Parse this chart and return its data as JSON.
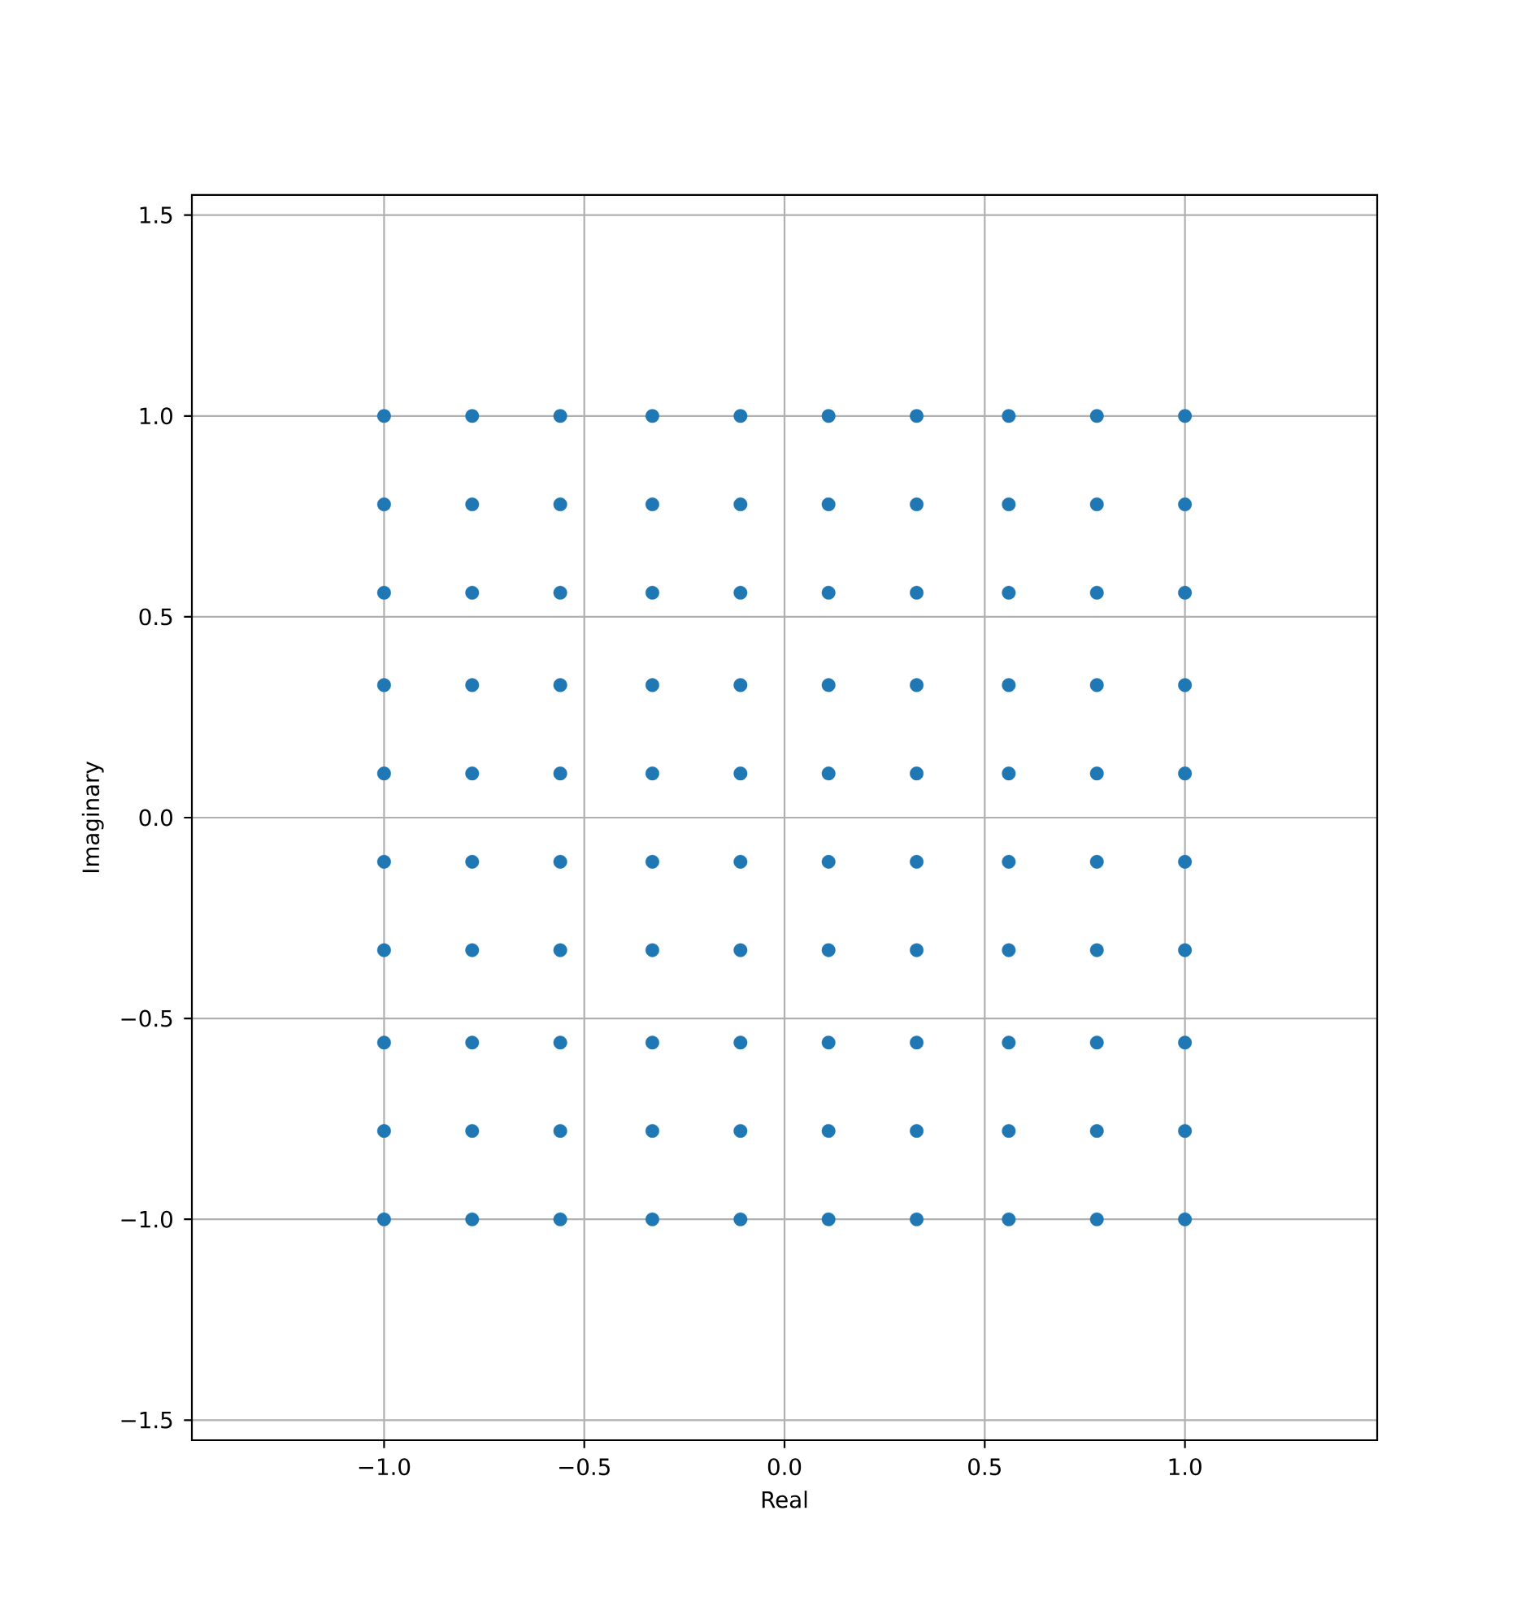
{
  "chart_data": {
    "type": "scatter",
    "xlabel": "Real",
    "ylabel": "Imaginary",
    "color": "#1f77b4",
    "marker": "circle",
    "grid": true,
    "x": [
      -1,
      -0.78,
      -0.56,
      -0.33,
      -0.11,
      0.11,
      0.33,
      0.56,
      0.78,
      1,
      -1,
      -0.78,
      -0.56,
      -0.33,
      -0.11,
      0.11,
      0.33,
      0.56,
      0.78,
      1,
      -1,
      -0.78,
      -0.56,
      -0.33,
      -0.11,
      0.11,
      0.33,
      0.56,
      0.78,
      1,
      -1,
      -0.78,
      -0.56,
      -0.33,
      -0.11,
      0.11,
      0.33,
      0.56,
      0.78,
      1,
      -1,
      -0.78,
      -0.56,
      -0.33,
      -0.11,
      0.11,
      0.33,
      0.56,
      0.78,
      1,
      -1,
      -0.78,
      -0.56,
      -0.33,
      -0.11,
      0.11,
      0.33,
      0.56,
      0.78,
      1,
      -1,
      -0.78,
      -0.56,
      -0.33,
      -0.11,
      0.11,
      0.33,
      0.56,
      0.78,
      1,
      -1,
      -0.78,
      -0.56,
      -0.33,
      -0.11,
      0.11,
      0.33,
      0.56,
      0.78,
      1,
      -1,
      -0.78,
      -0.56,
      -0.33,
      -0.11,
      0.11,
      0.33,
      0.56,
      0.78,
      1,
      -1,
      -0.78,
      -0.56,
      -0.33,
      -0.11,
      0.11,
      0.33,
      0.56,
      0.78,
      1
    ],
    "values": [
      1,
      1,
      1,
      1,
      1,
      1,
      1,
      1,
      1,
      1,
      0.78,
      0.78,
      0.78,
      0.78,
      0.78,
      0.78,
      0.78,
      0.78,
      0.78,
      0.78,
      0.56,
      0.56,
      0.56,
      0.56,
      0.56,
      0.56,
      0.56,
      0.56,
      0.56,
      0.56,
      0.33,
      0.33,
      0.33,
      0.33,
      0.33,
      0.33,
      0.33,
      0.33,
      0.33,
      0.33,
      0.11,
      0.11,
      0.11,
      0.11,
      0.11,
      0.11,
      0.11,
      0.11,
      0.11,
      0.11,
      -0.11,
      -0.11,
      -0.11,
      -0.11,
      -0.11,
      -0.11,
      -0.11,
      -0.11,
      -0.11,
      -0.11,
      -0.33,
      -0.33,
      -0.33,
      -0.33,
      -0.33,
      -0.33,
      -0.33,
      -0.33,
      -0.33,
      -0.33,
      -0.56,
      -0.56,
      -0.56,
      -0.56,
      -0.56,
      -0.56,
      -0.56,
      -0.56,
      -0.56,
      -0.56,
      -0.78,
      -0.78,
      -0.78,
      -0.78,
      -0.78,
      -0.78,
      -0.78,
      -0.78,
      -0.78,
      -0.78,
      -1,
      -1,
      -1,
      -1,
      -1,
      -1,
      -1,
      -1,
      -1,
      -1
    ],
    "xlim": [
      -1.48,
      1.48
    ],
    "ylim": [
      -1.55,
      1.55
    ],
    "xticks": [
      {
        "value": -1,
        "label": "−1.0"
      },
      {
        "value": -0.5,
        "label": "−0.5"
      },
      {
        "value": 0,
        "label": "0.0"
      },
      {
        "value": 0.5,
        "label": "0.5"
      },
      {
        "value": 1,
        "label": "1.0"
      }
    ],
    "yticks": [
      {
        "value": -1.5,
        "label": "−1.5"
      },
      {
        "value": -1,
        "label": "−1.0"
      },
      {
        "value": -0.5,
        "label": "−0.5"
      },
      {
        "value": 0,
        "label": "0.0"
      },
      {
        "value": 0.5,
        "label": "0.5"
      },
      {
        "value": 1,
        "label": "1.0"
      },
      {
        "value": 1.5,
        "label": "1.5"
      }
    ]
  }
}
